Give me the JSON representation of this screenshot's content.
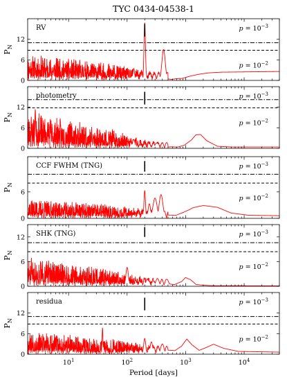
{
  "chart_data": {
    "type": "line",
    "title": "TYC 0434-04538-1",
    "xlabel": "Period [days]",
    "ylabel": "P",
    "ylabel_sub": "N",
    "xscale": "log",
    "xlim": [
      2,
      40000
    ],
    "x_ticks": [
      {
        "value": 10,
        "base": "10",
        "exp": "1"
      },
      {
        "value": 100,
        "base": "10",
        "exp": "2"
      },
      {
        "value": 1000,
        "base": "10",
        "exp": "3"
      },
      {
        "value": 10000,
        "base": "10",
        "exp": "4"
      }
    ],
    "marker_period": 200,
    "line_color": "#ff0000",
    "panels": [
      {
        "label": "RV",
        "ylim": [
          0,
          18
        ],
        "yticks": [
          0,
          6,
          12
        ],
        "fap_1e3": 11.0,
        "fap_1e2": 8.8,
        "fap_1e3_text": "p = 10",
        "fap_1e3_exp": "−3",
        "fap_1e2_text": "p = 10",
        "fap_1e2_exp": "−2",
        "marker_top": 16.5,
        "marker_bottom": 12.8,
        "seed": 11,
        "noise": {
          "start": 4.0,
          "end": 1.8,
          "long_amp": 0.55
        },
        "peaks": [
          [
            200,
            16.8,
            0.018
          ],
          [
            420,
            9.0,
            0.04
          ],
          [
            130,
            3.5,
            0.02
          ]
        ],
        "tail": [
          [
            600,
            0.3
          ],
          [
            850,
            0.5
          ],
          [
            1150,
            1.1
          ],
          [
            1600,
            1.7
          ],
          [
            2500,
            2.2
          ],
          [
            4000,
            2.4
          ],
          [
            40000,
            2.6
          ]
        ]
      },
      {
        "label": "photometry",
        "ylim": [
          0,
          18
        ],
        "yticks": [
          0,
          6,
          12
        ],
        "fap_1e3": 14.2,
        "fap_1e2": 11.8,
        "fap_1e3_text": "p = 10",
        "fap_1e3_exp": "−3",
        "fap_1e2_text": "p = 10",
        "fap_1e2_exp": "−2",
        "marker_top": 16.5,
        "marker_bottom": 12.8,
        "seed": 23,
        "noise": {
          "start": 5.6,
          "end": 1.3,
          "long_amp": 0.45
        },
        "peaks": [
          [
            2.7,
            11.5,
            0.01
          ],
          [
            130,
            2.6,
            0.03
          ],
          [
            320,
            1.6,
            0.04
          ]
        ],
        "tail": [
          [
            700,
            0.3
          ],
          [
            950,
            0.8
          ],
          [
            1250,
            2.4
          ],
          [
            1500,
            3.9
          ],
          [
            1800,
            4.0
          ],
          [
            2300,
            2.2
          ],
          [
            3500,
            0.6
          ],
          [
            6000,
            0.4
          ],
          [
            40000,
            0.4
          ]
        ]
      },
      {
        "label": "CCF FWHM (TNG)",
        "ylim": [
          0,
          14
        ],
        "yticks": [
          0,
          6
        ],
        "fap_1e3": 10.0,
        "fap_1e2": 8.0,
        "fap_1e3_text": "p = 10",
        "fap_1e3_exp": "−3",
        "fap_1e2_text": "p = 10",
        "fap_1e2_exp": "−2",
        "marker_top": 13.0,
        "marker_bottom": 10.6,
        "seed": 37,
        "noise": {
          "start": 2.3,
          "end": 1.3,
          "long_amp": 0.5
        },
        "peaks": [
          [
            200,
            6.3,
            0.018
          ],
          [
            240,
            3.3,
            0.03
          ],
          [
            300,
            4.6,
            0.05
          ],
          [
            380,
            5.4,
            0.045
          ]
        ],
        "tail": [
          [
            650,
            0.6
          ],
          [
            900,
            1.2
          ],
          [
            1300,
            2.3
          ],
          [
            2000,
            2.9
          ],
          [
            3500,
            2.5
          ],
          [
            6000,
            1.2
          ],
          [
            12000,
            0.7
          ],
          [
            40000,
            0.6
          ]
        ]
      },
      {
        "label": "SHK (TNG)",
        "ylim": [
          0,
          15
        ],
        "yticks": [
          0,
          6,
          12
        ],
        "fap_1e3": 10.6,
        "fap_1e2": 8.4,
        "fap_1e3_text": "p = 10",
        "fap_1e3_exp": "−3",
        "fap_1e2_text": "p = 10",
        "fap_1e2_exp": "−2",
        "marker_top": 14.4,
        "marker_bottom": 12.0,
        "seed": 51,
        "noise": {
          "start": 3.6,
          "end": 1.3,
          "long_amp": 0.5
        },
        "peaks": [
          [
            100,
            4.6,
            0.03
          ],
          [
            220,
            1.8,
            0.03
          ],
          [
            330,
            1.9,
            0.04
          ],
          [
            480,
            1.7,
            0.04
          ]
        ],
        "tail": [
          [
            650,
            0.4
          ],
          [
            850,
            1.0
          ],
          [
            1000,
            2.1
          ],
          [
            1200,
            1.6
          ],
          [
            1500,
            0.4
          ],
          [
            2500,
            0.15
          ],
          [
            40000,
            0.1
          ]
        ]
      },
      {
        "label": "residua",
        "ylim": [
          0,
          18
        ],
        "yticks": [
          0,
          6,
          12
        ],
        "fap_1e3": 11.0,
        "fap_1e2": 8.8,
        "fap_1e3_text": "p = 10",
        "fap_1e3_exp": "−3",
        "fap_1e2_text": "p = 10",
        "fap_1e2_exp": "−2",
        "marker_top": 16.5,
        "marker_bottom": 12.8,
        "seed": 67,
        "noise": {
          "start": 3.4,
          "end": 1.8,
          "long_amp": 0.55
        },
        "peaks": [
          [
            38,
            7.7,
            0.01
          ],
          [
            200,
            4.6,
            0.025
          ],
          [
            260,
            3.6,
            0.03
          ],
          [
            400,
            3.0,
            0.04
          ]
        ],
        "tail": [
          [
            650,
            1.0
          ],
          [
            850,
            2.2
          ],
          [
            1050,
            4.4
          ],
          [
            1300,
            2.6
          ],
          [
            1700,
            1.1
          ],
          [
            2300,
            2.0
          ],
          [
            3000,
            2.9
          ],
          [
            4500,
            1.7
          ],
          [
            8000,
            0.8
          ],
          [
            40000,
            0.6
          ]
        ]
      }
    ]
  }
}
